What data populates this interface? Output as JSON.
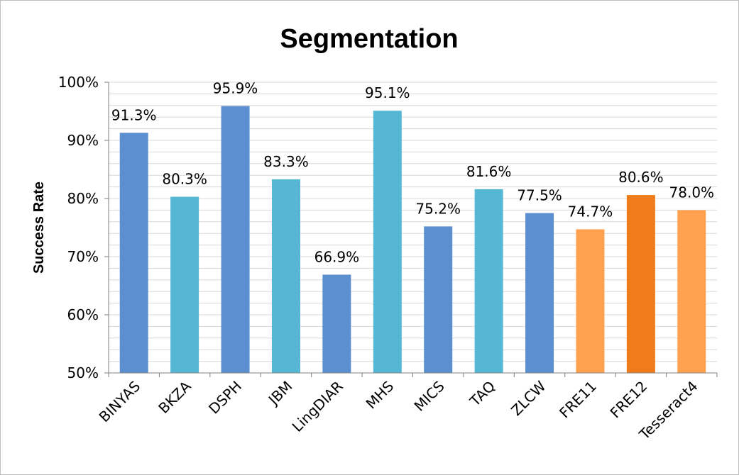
{
  "chart_data": {
    "type": "bar",
    "title": "Segmentation",
    "xlabel": "",
    "ylabel": "Success Rate",
    "ylim": [
      50,
      100
    ],
    "y_ticks": [
      50,
      60,
      70,
      80,
      90,
      100
    ],
    "y_tick_labels": [
      "50%",
      "60%",
      "70%",
      "80%",
      "90%",
      "100%"
    ],
    "grid": true,
    "legend": "none",
    "categories": [
      "BINYAS",
      "BKZA",
      "DSPH",
      "JBM",
      "LingDIAR",
      "MHS",
      "MICS",
      "TAQ",
      "ZLCW",
      "FRE11",
      "FRE12",
      "Tesseract4"
    ],
    "values": [
      91.3,
      80.3,
      95.9,
      83.3,
      66.9,
      95.1,
      75.2,
      81.6,
      77.5,
      74.7,
      80.6,
      78.0
    ],
    "data_labels": [
      "91.3%",
      "80.3%",
      "95.9%",
      "83.3%",
      "66.9%",
      "95.1%",
      "75.2%",
      "81.6%",
      "77.5%",
      "74.7%",
      "80.6%",
      "78.0%"
    ],
    "bar_colors": [
      "#5b8fd0",
      "#55b7d4",
      "#5b8fd0",
      "#55b7d4",
      "#5b8fd0",
      "#55b7d4",
      "#5b8fd0",
      "#55b7d4",
      "#5b8fd0",
      "#ffa14f",
      "#f07b1a",
      "#ffa14f"
    ],
    "gridline_color": "#d9d9d9",
    "axis_color": "#7f7f7f"
  }
}
